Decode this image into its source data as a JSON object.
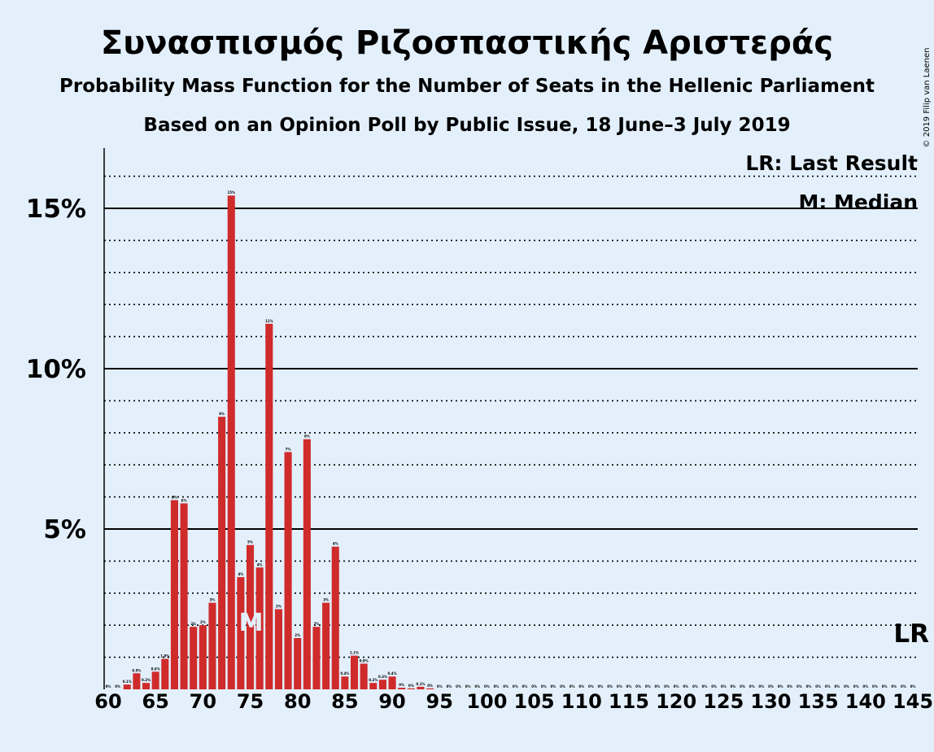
{
  "title": "Συνασπισμός Ριζοσπαστικής Αριστεράς",
  "subtitle1": "Probability Mass Function for the Number of Seats in the Hellenic Parliament",
  "subtitle2": "Based on an Opinion Poll by Public Issue, 18 June–3 July 2019",
  "copyright": "© 2019 Filip van Laenen",
  "legend": {
    "last_result": "LR: Last Result",
    "median": "M: Median"
  },
  "markers": {
    "median_label": "M",
    "median_seat": 75,
    "lr_label": "LR",
    "lr_seat": 145
  },
  "colors": {
    "background": "#e3f0fc",
    "bar": "#d02b2b"
  },
  "chart_data": {
    "type": "bar",
    "x": [
      60,
      61,
      62,
      63,
      64,
      65,
      66,
      67,
      68,
      69,
      70,
      71,
      72,
      73,
      74,
      75,
      76,
      77,
      78,
      79,
      80,
      81,
      82,
      83,
      84,
      85,
      86,
      87,
      88,
      89,
      90,
      91,
      92,
      93,
      94,
      95,
      96,
      97,
      98,
      99,
      100,
      101,
      102,
      103,
      104,
      105,
      106,
      107,
      108,
      109,
      110,
      111,
      112,
      113,
      114,
      115,
      116,
      117,
      118,
      119,
      120,
      121,
      122,
      123,
      124,
      125,
      126,
      127,
      128,
      129,
      130,
      131,
      132,
      133,
      134,
      135,
      136,
      137,
      138,
      139,
      140,
      141,
      142,
      143,
      144,
      145
    ],
    "values": [
      0,
      0,
      0.15,
      0.5,
      0.2,
      0.55,
      0.95,
      5.9,
      5.8,
      1.95,
      2.0,
      2.7,
      8.5,
      15.4,
      3.5,
      4.5,
      3.8,
      11.4,
      2.5,
      7.4,
      1.6,
      7.8,
      1.95,
      2.7,
      4.45,
      0.4,
      1.05,
      0.8,
      0.2,
      0.3,
      0.4,
      0.05,
      0.03,
      0.08,
      0.03,
      0,
      0,
      0,
      0,
      0,
      0,
      0,
      0,
      0,
      0,
      0,
      0,
      0,
      0,
      0,
      0,
      0,
      0,
      0,
      0,
      0,
      0,
      0,
      0,
      0,
      0,
      0,
      0,
      0,
      0,
      0,
      0,
      0,
      0,
      0,
      0,
      0,
      0,
      0,
      0,
      0,
      0,
      0,
      0,
      0,
      0,
      0,
      0,
      0,
      0,
      0
    ],
    "data_labels": [
      "0%",
      "0%",
      "0.1%",
      "0.5%",
      "0.2%",
      "0.6%",
      "1.0%",
      "6%",
      "6%",
      "2%",
      "2%",
      "3%",
      "9%",
      "15%",
      "4%",
      "5%",
      "4%",
      "11%",
      "3%",
      "7%",
      "2%",
      "8%",
      "2%",
      "3%",
      "4%",
      "0.4%",
      "1.1%",
      "0.8%",
      "0.2%",
      "0.3%",
      "0.4%",
      "0%",
      "0%",
      "0.1%",
      "0%",
      "0%",
      "0%",
      "0%",
      "0%",
      "0%",
      "0%",
      "0%",
      "0%",
      "0%",
      "0%",
      "0%",
      "0%",
      "0%",
      "0%",
      "0%",
      "0%",
      "0%",
      "0%",
      "0%",
      "0%",
      "0%",
      "0%",
      "0%",
      "0%",
      "0%",
      "0%",
      "0%",
      "0%",
      "0%",
      "0%",
      "0%",
      "0%",
      "0%",
      "0%",
      "0%",
      "0%",
      "0%",
      "0%",
      "0%",
      "0%",
      "0%",
      "0%",
      "0%",
      "0%",
      "0%",
      "0%",
      "0%",
      "0%",
      "0%",
      "0%",
      "0%"
    ],
    "x_ticks": [
      "60",
      "65",
      "70",
      "75",
      "80",
      "85",
      "90",
      "95",
      "100",
      "105",
      "110",
      "115",
      "120",
      "125",
      "130",
      "135",
      "140",
      "145"
    ],
    "y_ticks": [
      "5%",
      "10%",
      "15%"
    ],
    "ylim": [
      0,
      17
    ],
    "xlim": [
      60,
      145
    ],
    "grid": "dotted every 1%, solid at 5%, 10%, 15%"
  }
}
